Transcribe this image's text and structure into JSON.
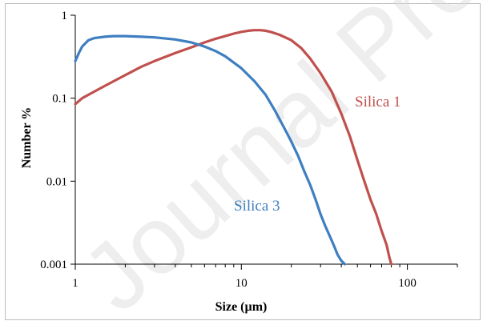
{
  "watermark": "Journal Pre-proof",
  "colors": {
    "silica1": "#c0504d",
    "silica3": "#3f7fc1",
    "axis": "#000000"
  },
  "chart_data": {
    "type": "line",
    "title": "",
    "xlabel": "Size (µm)",
    "ylabel": "Number %",
    "xscale": "log",
    "yscale": "log",
    "xlim": [
      1,
      200
    ],
    "ylim": [
      0.001,
      1
    ],
    "xticks": [
      1,
      10,
      100
    ],
    "xtick_labels": [
      "1",
      "10",
      "100"
    ],
    "yticks": [
      0.001,
      0.01,
      0.1,
      1
    ],
    "ytick_labels": [
      "0.001",
      "0.01",
      "0.1",
      "1"
    ],
    "grid": false,
    "legend": "inline labels",
    "series": [
      {
        "name": "Silica 1",
        "color": "#c0504d",
        "x": [
          1,
          1.1,
          1.2,
          1.3,
          1.5,
          1.7,
          2,
          2.5,
          3,
          4,
          5,
          6,
          7,
          8,
          9,
          10,
          11,
          12,
          13,
          14,
          15,
          17,
          20,
          23,
          26,
          30,
          35,
          40,
          45,
          50,
          55,
          60,
          65,
          70,
          75,
          78,
          80
        ],
        "y": [
          0.085,
          0.1,
          0.11,
          0.12,
          0.14,
          0.16,
          0.19,
          0.24,
          0.28,
          0.35,
          0.41,
          0.47,
          0.52,
          0.56,
          0.6,
          0.63,
          0.65,
          0.66,
          0.66,
          0.65,
          0.63,
          0.58,
          0.5,
          0.4,
          0.3,
          0.2,
          0.12,
          0.065,
          0.035,
          0.018,
          0.01,
          0.006,
          0.004,
          0.0025,
          0.0017,
          0.0012,
          0.001
        ]
      },
      {
        "name": "Silica 3",
        "color": "#3f7fc1",
        "x": [
          1,
          1.05,
          1.1,
          1.2,
          1.3,
          1.5,
          1.7,
          2,
          2.5,
          3,
          4,
          5,
          6,
          7,
          8,
          10,
          12,
          14,
          16,
          18,
          20,
          22,
          24,
          26,
          28,
          30,
          32,
          34,
          36,
          38,
          40,
          42
        ],
        "y": [
          0.28,
          0.35,
          0.42,
          0.5,
          0.53,
          0.55,
          0.56,
          0.56,
          0.55,
          0.54,
          0.51,
          0.47,
          0.42,
          0.37,
          0.32,
          0.23,
          0.16,
          0.11,
          0.07,
          0.045,
          0.03,
          0.02,
          0.013,
          0.009,
          0.006,
          0.004,
          0.0029,
          0.0022,
          0.0017,
          0.0013,
          0.0011,
          0.001
        ]
      }
    ],
    "annotations": [
      {
        "text": "Silica 1",
        "series": "Silica 1"
      },
      {
        "text": "Silica 3",
        "series": "Silica 3"
      }
    ]
  }
}
